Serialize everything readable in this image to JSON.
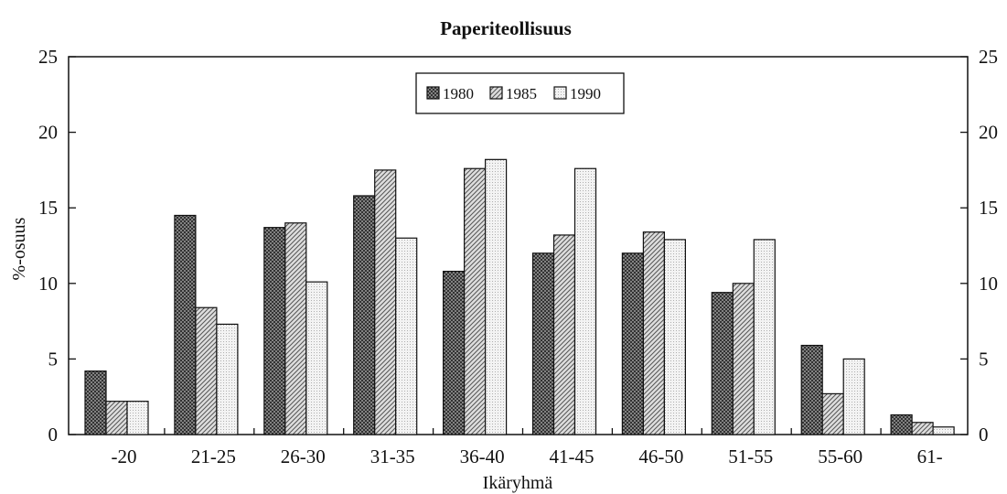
{
  "chart_data": {
    "type": "bar",
    "title": "Paperiteollisuus",
    "xlabel": "Ikäryhmä",
    "ylabel": "%-osuus",
    "ylim": [
      0,
      25
    ],
    "yticks": [
      "0",
      "5",
      "10",
      "15",
      "20",
      "25"
    ],
    "right_axis_ticks": [
      "0",
      "5",
      "10",
      "15",
      "20",
      "25"
    ],
    "legend_position": "top-center",
    "grid": false,
    "categories": [
      "-20",
      "21-25",
      "26-30",
      "31-35",
      "36-40",
      "41-45",
      "46-50",
      "51-55",
      "55-60",
      "61-"
    ],
    "series": [
      {
        "name": "1980",
        "pattern": "crosshatch",
        "values": [
          4.2,
          14.5,
          13.7,
          15.8,
          10.8,
          12.0,
          12.0,
          9.4,
          5.9,
          1.3
        ]
      },
      {
        "name": "1985",
        "pattern": "diagonal",
        "values": [
          2.2,
          8.4,
          14.0,
          17.5,
          17.6,
          13.2,
          13.4,
          10.0,
          2.7,
          0.8
        ]
      },
      {
        "name": "1990",
        "pattern": "light-dotted",
        "values": [
          2.2,
          7.3,
          10.1,
          13.0,
          18.2,
          17.6,
          12.9,
          12.9,
          5.0,
          0.5
        ]
      }
    ]
  }
}
